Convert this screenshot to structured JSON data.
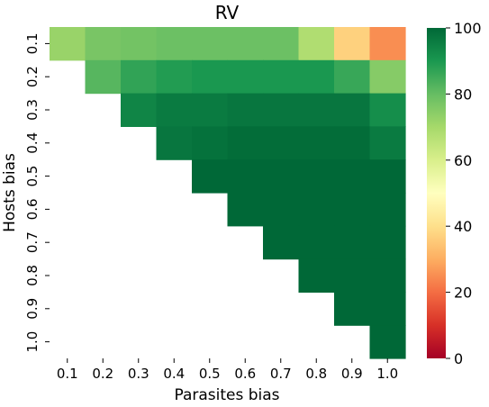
{
  "chart_data": {
    "type": "heatmap",
    "title": "RV",
    "xlabel": "Parasites bias",
    "ylabel": "Hosts bias",
    "x_categories": [
      "0.1",
      "0.2",
      "0.3",
      "0.4",
      "0.5",
      "0.6",
      "0.7",
      "0.8",
      "0.9",
      "1.0"
    ],
    "y_categories": [
      "0.1",
      "0.2",
      "0.3",
      "0.4",
      "0.5",
      "0.6",
      "0.7",
      "0.8",
      "0.9",
      "1.0"
    ],
    "values": [
      [
        72,
        77,
        78,
        79,
        79,
        79,
        79,
        68,
        37,
        25
      ],
      [
        null,
        82,
        87,
        89,
        90,
        90,
        90,
        90,
        86,
        75
      ],
      [
        null,
        null,
        94,
        96,
        96,
        97,
        97,
        97,
        97,
        92
      ],
      [
        null,
        null,
        null,
        97,
        98,
        99,
        99,
        99,
        99,
        96
      ],
      [
        null,
        null,
        null,
        null,
        100,
        100,
        100,
        100,
        100,
        100
      ],
      [
        null,
        null,
        null,
        null,
        null,
        100,
        100,
        100,
        100,
        100
      ],
      [
        null,
        null,
        null,
        null,
        null,
        null,
        100,
        100,
        100,
        100
      ],
      [
        null,
        null,
        null,
        null,
        null,
        null,
        null,
        100,
        100,
        100
      ],
      [
        null,
        null,
        null,
        null,
        null,
        null,
        null,
        null,
        100,
        100
      ],
      [
        null,
        null,
        null,
        null,
        null,
        null,
        null,
        null,
        null,
        100
      ]
    ],
    "colormap": "RdYlGn",
    "vmin": 0,
    "vmax": 100,
    "colorbar_ticks": [
      "0",
      "20",
      "40",
      "60",
      "80",
      "100"
    ],
    "grid": false
  }
}
